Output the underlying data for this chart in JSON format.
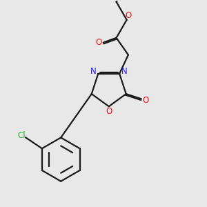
{
  "bg_color": "#e8e8e8",
  "bond_color": "#1a1a1a",
  "N_color": "#2020ff",
  "O_color": "#ee1111",
  "Cl_color": "#22aa22",
  "line_width": 1.6,
  "font_size_atom": 8.5,
  "fig_size": [
    3.0,
    3.0
  ],
  "dpi": 100,
  "xlim": [
    0.5,
    7.5
  ],
  "ylim": [
    0.3,
    8.0
  ]
}
